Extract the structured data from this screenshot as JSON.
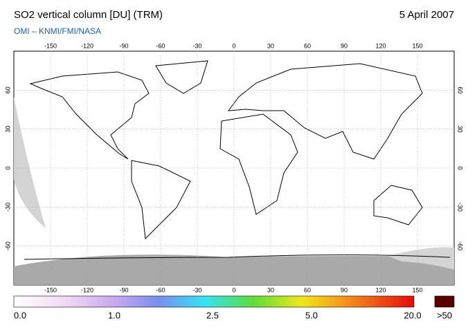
{
  "header": {
    "title": "SO2 vertical column [DU] (TRM)",
    "date": "5 April 2007",
    "credit": "OMI  –  KNMI/FMI/NASA"
  },
  "map": {
    "lon_labels": [
      "-150",
      "-120",
      "-90",
      "-60",
      "-30",
      "0",
      "30",
      "60",
      "90",
      "120",
      "150"
    ],
    "lat_labels": [
      "60",
      "30",
      "0",
      "-30",
      "-60"
    ]
  },
  "colorbar": {
    "labels": [
      "0.0",
      "1.0",
      "2.5",
      "5.0",
      "20.0"
    ],
    "overflow_label": ">50"
  }
}
